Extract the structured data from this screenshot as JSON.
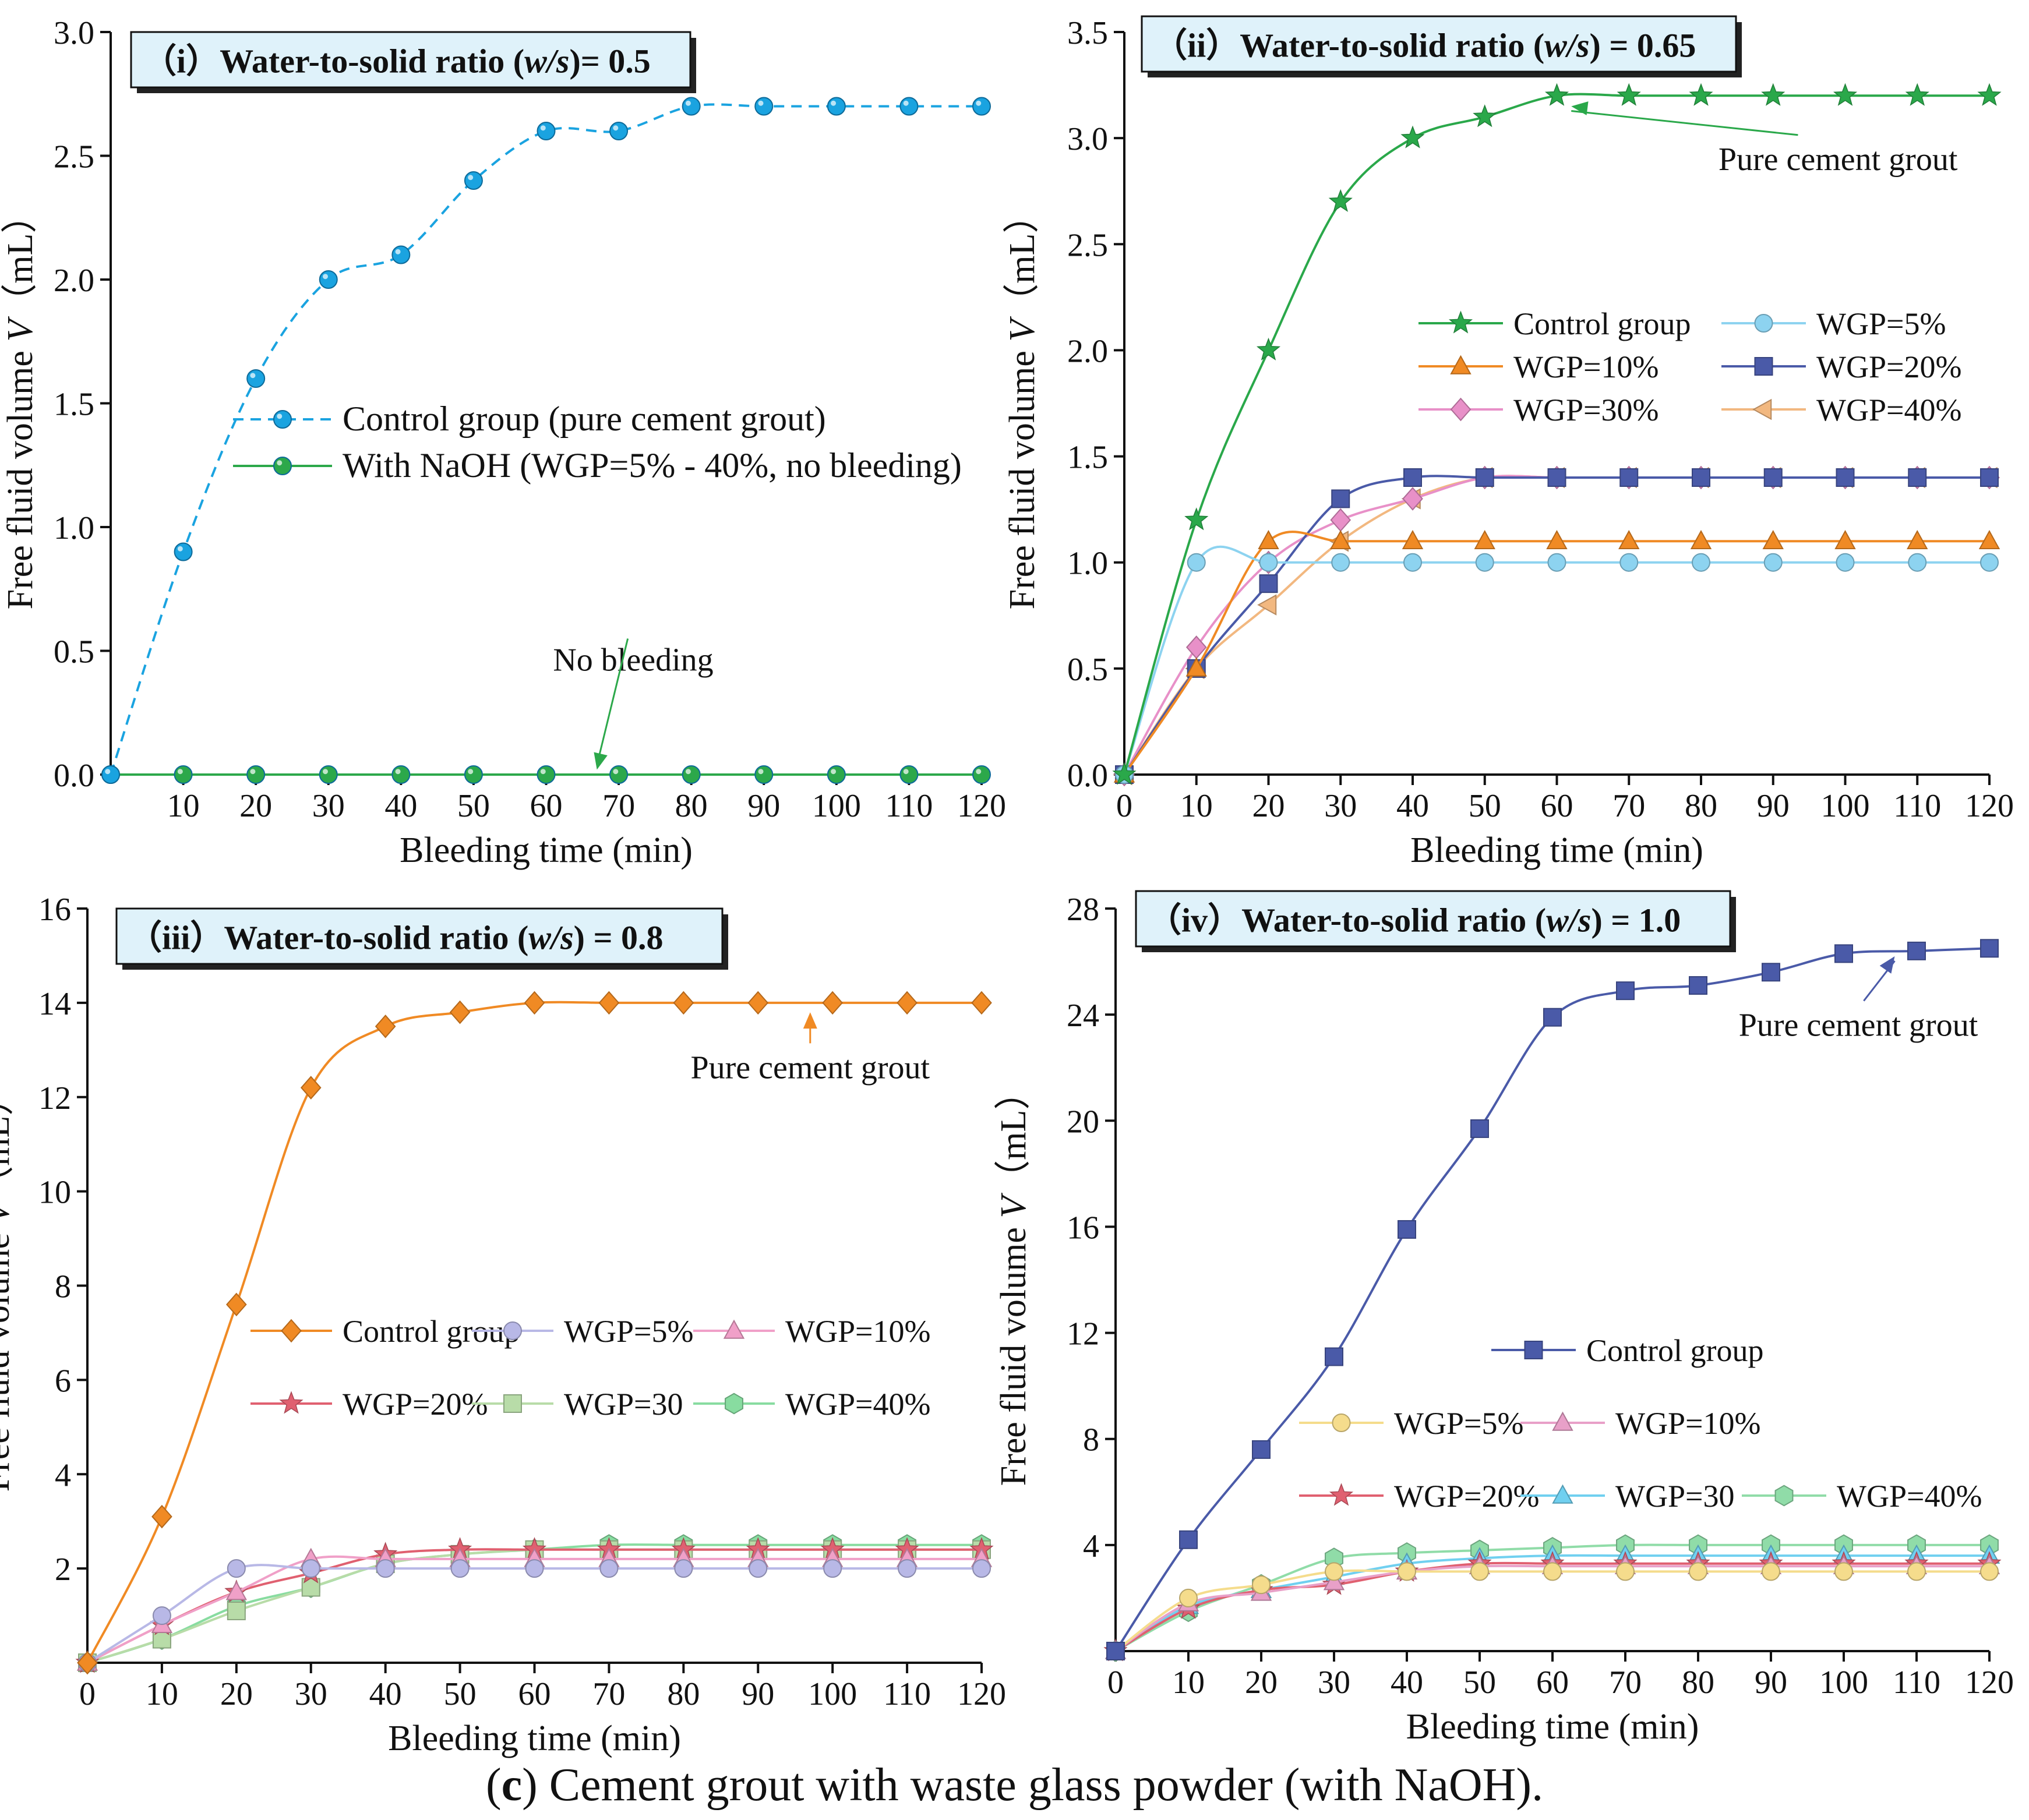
{
  "caption": {
    "letter": "c",
    "text": " Cement grout with waste glass powder (with NaOH)."
  },
  "chart_data": [
    {
      "type": "line",
      "panel": "i",
      "title_prefix": "（i）Water-to-solid ratio (",
      "title_ws": "w/s",
      "title_suffix": ")= 0.5",
      "xlabel": "Bleeding time (min)",
      "ylabel": "Free fluid volume",
      "ylabel_var": "V",
      "ylabel_unit": "（mL）",
      "xlim": [
        0,
        120
      ],
      "ylim": [
        0,
        3.0
      ],
      "xticks": [
        10,
        20,
        30,
        40,
        50,
        60,
        70,
        80,
        90,
        100,
        110,
        120
      ],
      "yticks": [
        0.0,
        0.5,
        1.0,
        1.5,
        2.0,
        2.5,
        3.0
      ],
      "ytick_labels": [
        "0.0",
        "0.5",
        "1.0",
        "1.5",
        "2.0",
        "2.5",
        "3.0"
      ],
      "legend_position": "center-left",
      "series": [
        {
          "name": "Control group (pure cement grout)",
          "color": "#1aa3e0",
          "marker": "sphere",
          "dashed": true,
          "x": [
            0,
            10,
            20,
            30,
            40,
            50,
            60,
            70,
            80,
            90,
            100,
            110,
            120
          ],
          "values": [
            0,
            0.9,
            1.6,
            2.0,
            2.1,
            2.4,
            2.6,
            2.6,
            2.7,
            2.7,
            2.7,
            2.7,
            2.7
          ]
        },
        {
          "name": "With NaOH (WGP=5% - 40%, no bleeding)",
          "color": "#2ca84a",
          "marker": "sphere",
          "dashed": false,
          "x": [
            0,
            10,
            20,
            30,
            40,
            50,
            60,
            70,
            80,
            90,
            100,
            110,
            120
          ],
          "values": [
            0,
            0,
            0,
            0,
            0,
            0,
            0,
            0,
            0,
            0,
            0,
            0,
            0
          ]
        }
      ],
      "annotations": [
        {
          "text": "No bleeding",
          "color": "#2ca84a",
          "at_x": 67,
          "at_y": 0.02,
          "text_x": 72,
          "text_y": 0.42
        }
      ]
    },
    {
      "type": "line",
      "panel": "ii",
      "title_prefix": "（ii）Water-to-solid ratio (",
      "title_ws": "w/s",
      "title_suffix": ") = 0.65",
      "xlabel": "Bleeding time (min)",
      "ylabel": "Free fluid volume",
      "ylabel_var": "V",
      "ylabel_unit": "（mL）",
      "xlim": [
        0,
        120
      ],
      "ylim": [
        0,
        3.5
      ],
      "xticks": [
        0,
        10,
        20,
        30,
        40,
        50,
        60,
        70,
        80,
        90,
        100,
        110,
        120
      ],
      "yticks": [
        0.0,
        0.5,
        1.0,
        1.5,
        2.0,
        2.5,
        3.0,
        3.5
      ],
      "ytick_labels": [
        "0.0",
        "0.5",
        "1.0",
        "1.5",
        "2.0",
        "2.5",
        "3.0",
        "3.5"
      ],
      "legend_position": "center",
      "series": [
        {
          "name": "Control group",
          "color": "#2aa84a",
          "marker": "star",
          "x": [
            0,
            10,
            20,
            30,
            40,
            50,
            60,
            70,
            80,
            90,
            100,
            110,
            120
          ],
          "values": [
            0,
            1.2,
            2.0,
            2.7,
            3.0,
            3.1,
            3.2,
            3.2,
            3.2,
            3.2,
            3.2,
            3.2,
            3.2
          ]
        },
        {
          "name": "WGP=5%",
          "color": "#8dd3f0",
          "marker": "circle",
          "x": [
            0,
            10,
            20,
            30,
            40,
            50,
            60,
            70,
            80,
            90,
            100,
            110,
            120
          ],
          "values": [
            0,
            1.0,
            1.0,
            1.0,
            1.0,
            1.0,
            1.0,
            1.0,
            1.0,
            1.0,
            1.0,
            1.0,
            1.0
          ]
        },
        {
          "name": "WGP=10%",
          "color": "#f08a24",
          "marker": "triangle",
          "x": [
            0,
            10,
            20,
            30,
            40,
            50,
            60,
            70,
            80,
            90,
            100,
            110,
            120
          ],
          "values": [
            0,
            0.5,
            1.1,
            1.1,
            1.1,
            1.1,
            1.1,
            1.1,
            1.1,
            1.1,
            1.1,
            1.1,
            1.1
          ]
        },
        {
          "name": "WGP=20%",
          "color": "#4a5aa8",
          "marker": "square",
          "x": [
            0,
            10,
            20,
            30,
            40,
            50,
            60,
            70,
            80,
            90,
            100,
            110,
            120
          ],
          "values": [
            0,
            0.5,
            0.9,
            1.3,
            1.4,
            1.4,
            1.4,
            1.4,
            1.4,
            1.4,
            1.4,
            1.4,
            1.4
          ]
        },
        {
          "name": "WGP=30%",
          "color": "#e890c8",
          "marker": "diamond",
          "x": [
            0,
            10,
            20,
            30,
            40,
            50,
            60,
            70,
            80,
            90,
            100,
            110,
            120
          ],
          "values": [
            0,
            0.6,
            1.0,
            1.2,
            1.3,
            1.4,
            1.4,
            1.4,
            1.4,
            1.4,
            1.4,
            1.4,
            1.4
          ]
        },
        {
          "name": "WGP=40%",
          "color": "#f2b880",
          "marker": "left-triangle",
          "x": [
            0,
            10,
            20,
            30,
            40,
            50,
            60,
            70,
            80,
            90,
            100,
            110,
            120
          ],
          "values": [
            0,
            0.5,
            0.8,
            1.1,
            1.3,
            1.4,
            1.4,
            1.4,
            1.4,
            1.4,
            1.4,
            1.4,
            1.4
          ]
        }
      ],
      "annotations": [
        {
          "text": "Pure cement grout",
          "color": "#2aa84a",
          "at_x": 62,
          "at_y": 3.15,
          "text_x": 99,
          "text_y": 2.85
        }
      ]
    },
    {
      "type": "line",
      "panel": "iii",
      "title_prefix": "（iii）Water-to-solid ratio (",
      "title_ws": "w/s",
      "title_suffix": ")  = 0.8",
      "xlabel": "Bleeding time (min)",
      "ylabel": "Free fluid volume",
      "ylabel_var": "V",
      "ylabel_unit": "（mL）",
      "xlim": [
        0,
        120
      ],
      "ylim": [
        0,
        16
      ],
      "xticks": [
        0,
        10,
        20,
        30,
        40,
        50,
        60,
        70,
        80,
        90,
        100,
        110,
        120
      ],
      "yticks": [
        2,
        4,
        6,
        8,
        10,
        12,
        14,
        16
      ],
      "ytick_labels": [
        "2",
        "4",
        "6",
        "8",
        "10",
        "12",
        "14",
        "16"
      ],
      "legend_position": "center",
      "series": [
        {
          "name": "Control group",
          "color": "#f08a24",
          "marker": "diamond",
          "x": [
            0,
            10,
            20,
            30,
            40,
            50,
            60,
            70,
            80,
            90,
            100,
            110,
            120
          ],
          "values": [
            0,
            3.1,
            7.6,
            12.2,
            13.5,
            13.8,
            14.0,
            14.0,
            14.0,
            14.0,
            14.0,
            14.0,
            14.0
          ]
        },
        {
          "name": "WGP=5%",
          "color": "#b8b8e6",
          "marker": "circle",
          "x": [
            0,
            10,
            20,
            30,
            40,
            50,
            60,
            70,
            80,
            90,
            100,
            110,
            120
          ],
          "values": [
            0,
            1.0,
            2.0,
            2.0,
            2.0,
            2.0,
            2.0,
            2.0,
            2.0,
            2.0,
            2.0,
            2.0,
            2.0
          ]
        },
        {
          "name": "WGP=10%",
          "color": "#f0a0c8",
          "marker": "triangle",
          "x": [
            0,
            10,
            20,
            30,
            40,
            50,
            60,
            70,
            80,
            90,
            100,
            110,
            120
          ],
          "values": [
            0,
            0.8,
            1.5,
            2.2,
            2.2,
            2.2,
            2.2,
            2.2,
            2.2,
            2.2,
            2.2,
            2.2,
            2.2
          ]
        },
        {
          "name": "WGP=20%",
          "color": "#e06070",
          "marker": "star",
          "x": [
            0,
            10,
            20,
            30,
            40,
            50,
            60,
            70,
            80,
            90,
            100,
            110,
            120
          ],
          "values": [
            0,
            0.8,
            1.5,
            1.9,
            2.3,
            2.4,
            2.4,
            2.4,
            2.4,
            2.4,
            2.4,
            2.4,
            2.4
          ]
        },
        {
          "name": "WGP=30",
          "color": "#b8dca8",
          "marker": "square",
          "x": [
            0,
            10,
            20,
            30,
            40,
            50,
            60,
            70,
            80,
            90,
            100,
            110,
            120
          ],
          "values": [
            0,
            0.5,
            1.1,
            1.6,
            2.1,
            2.3,
            2.4,
            2.4,
            2.4,
            2.4,
            2.4,
            2.4,
            2.4
          ]
        },
        {
          "name": "WGP=40%",
          "color": "#88dca0",
          "marker": "hexagon",
          "x": [
            0,
            10,
            20,
            30,
            40,
            50,
            60,
            70,
            80,
            90,
            100,
            110,
            120
          ],
          "values": [
            0,
            0.5,
            1.2,
            1.6,
            2.1,
            2.3,
            2.4,
            2.5,
            2.5,
            2.5,
            2.5,
            2.5,
            2.5
          ]
        }
      ],
      "annotations": [
        {
          "text": "Pure cement grout",
          "color": "#f08a24",
          "at_x": 97,
          "at_y": 13.8,
          "text_x": 97,
          "text_y": 12.4
        }
      ]
    },
    {
      "type": "line",
      "panel": "iv",
      "title_prefix": "（iv）Water-to-solid ratio (",
      "title_ws": "w/s",
      "title_suffix": ") = 1.0",
      "xlabel": "Bleeding time (min)",
      "ylabel": "Free fluid volume",
      "ylabel_var": "V",
      "ylabel_unit": "（mL）",
      "xlim": [
        0,
        120
      ],
      "ylim": [
        0,
        28
      ],
      "xticks": [
        0,
        10,
        20,
        30,
        40,
        50,
        60,
        70,
        80,
        90,
        100,
        110,
        120
      ],
      "yticks": [
        4,
        8,
        12,
        16,
        20,
        24,
        28
      ],
      "ytick_labels": [
        "4",
        "8",
        "12",
        "16",
        "20",
        "24",
        "28"
      ],
      "legend_position": "center",
      "series": [
        {
          "name": "Control group",
          "color": "#4a5aa8",
          "marker": "square",
          "x": [
            0,
            10,
            20,
            30,
            40,
            50,
            60,
            70,
            80,
            90,
            100,
            110,
            120
          ],
          "values": [
            0,
            4.2,
            7.6,
            11.1,
            15.9,
            19.7,
            23.9,
            24.9,
            25.1,
            25.6,
            26.3,
            26.4,
            26.5
          ]
        },
        {
          "name": "WGP=5%",
          "color": "#f5dc8c",
          "marker": "circle",
          "x": [
            0,
            10,
            20,
            30,
            40,
            50,
            60,
            70,
            80,
            90,
            100,
            110,
            120
          ],
          "values": [
            0,
            2.0,
            2.5,
            3.0,
            3.0,
            3.0,
            3.0,
            3.0,
            3.0,
            3.0,
            3.0,
            3.0,
            3.0
          ]
        },
        {
          "name": "WGP=10%",
          "color": "#e8a0c8",
          "marker": "triangle",
          "x": [
            0,
            10,
            20,
            30,
            40,
            50,
            60,
            70,
            80,
            90,
            100,
            110,
            120
          ],
          "values": [
            0,
            1.8,
            2.2,
            2.6,
            3.0,
            3.2,
            3.2,
            3.2,
            3.2,
            3.2,
            3.2,
            3.2,
            3.2
          ]
        },
        {
          "name": "WGP=20%",
          "color": "#e06070",
          "marker": "star",
          "x": [
            0,
            10,
            20,
            30,
            40,
            50,
            60,
            70,
            80,
            90,
            100,
            110,
            120
          ],
          "values": [
            0,
            1.6,
            2.3,
            2.5,
            3.0,
            3.3,
            3.3,
            3.3,
            3.3,
            3.3,
            3.3,
            3.3,
            3.3
          ]
        },
        {
          "name": "WGP=30",
          "color": "#70d0f0",
          "marker": "triangle",
          "x": [
            0,
            10,
            20,
            30,
            40,
            50,
            60,
            70,
            80,
            90,
            100,
            110,
            120
          ],
          "values": [
            0,
            1.7,
            2.3,
            2.8,
            3.3,
            3.5,
            3.6,
            3.6,
            3.6,
            3.6,
            3.6,
            3.6,
            3.6
          ]
        },
        {
          "name": "WGP=40%",
          "color": "#90dca8",
          "marker": "hexagon",
          "x": [
            0,
            10,
            20,
            30,
            40,
            50,
            60,
            70,
            80,
            90,
            100,
            110,
            120
          ],
          "values": [
            0,
            1.5,
            2.5,
            3.5,
            3.7,
            3.8,
            3.9,
            4.0,
            4.0,
            4.0,
            4.0,
            4.0,
            4.0
          ]
        }
      ],
      "annotations": [
        {
          "text": "Pure cement grout",
          "color": "#4a5aa8",
          "at_x": 107,
          "at_y": 26.2,
          "text_x": 102,
          "text_y": 23.2
        }
      ]
    }
  ]
}
